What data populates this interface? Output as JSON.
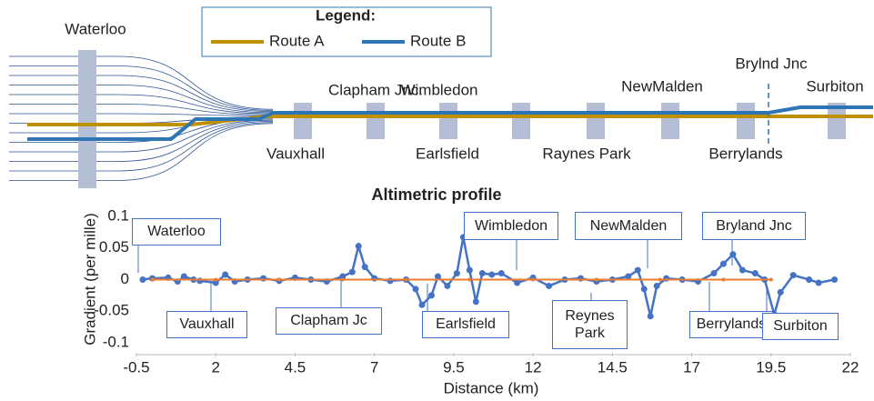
{
  "diagram": {
    "legend_title": "Legend:",
    "routes": [
      {
        "name": "Route A",
        "color": "#bf9000"
      },
      {
        "name": "Route B",
        "color": "#2e75b6"
      }
    ],
    "stations": [
      "Waterloo",
      "Clapham Jnc.",
      "Wimbledon",
      "NewMalden",
      "Brylnd Jnc",
      "Surbiton",
      "Vauxhall",
      "Earlsfield",
      "Raynes Park",
      "Berrylands"
    ]
  },
  "chart_data": {
    "type": "line",
    "title": "Altimetric profile",
    "x_label": "Distance (km)",
    "y_label": "Gradient (per mille)",
    "xlim": [
      -0.5,
      22
    ],
    "xticks": [
      -0.5,
      2,
      4.5,
      7,
      9.5,
      12,
      14.5,
      17,
      19.5,
      22
    ],
    "ylim": [
      -0.1,
      0.1
    ],
    "yticks": [
      -0.1,
      -0.05,
      0,
      0.05,
      0.1
    ],
    "grid": false,
    "series": [
      {
        "color": "#4472c4",
        "x": [
          -0.3,
          0,
          0.5,
          0.8,
          1,
          1.3,
          1.5,
          2,
          2.3,
          2.6,
          3,
          3.5,
          4,
          4.5,
          5,
          5.5,
          6,
          6.3,
          6.5,
          6.7,
          7,
          7.5,
          8,
          8.3,
          8.5,
          8.8,
          9,
          9.3,
          9.6,
          9.8,
          10,
          10.2,
          10.4,
          10.7,
          11,
          11.5,
          12,
          12.5,
          13,
          13.5,
          14,
          14.5,
          15,
          15.3,
          15.5,
          15.7,
          15.9,
          16.2,
          16.7,
          17.2,
          17.7,
          18,
          18.3,
          18.6,
          19,
          19.3,
          19.6,
          19.8,
          20.2,
          20.7,
          21,
          21.5
        ],
        "values": [
          0,
          0.002,
          0.003,
          -0.003,
          0.005,
          0,
          -0.002,
          -0.005,
          0.008,
          -0.003,
          0,
          0.002,
          -0.002,
          0.003,
          0,
          -0.003,
          0.005,
          0.012,
          0.053,
          0.02,
          0.002,
          -0.002,
          0,
          -0.015,
          -0.04,
          -0.025,
          0.005,
          -0.01,
          0.01,
          0.067,
          0.015,
          -0.035,
          0.01,
          0.008,
          0.01,
          -0.005,
          0.003,
          -0.01,
          0,
          0.002,
          -0.003,
          0,
          0.005,
          0.015,
          -0.015,
          -0.058,
          -0.01,
          0.002,
          0,
          -0.003,
          0.01,
          0.025,
          0.04,
          0.015,
          0.01,
          0,
          -0.055,
          -0.02,
          0.007,
          0,
          -0.005,
          0
        ]
      },
      {
        "color": "#ed7d31",
        "x": [
          0,
          2,
          4,
          6,
          8,
          10,
          12,
          14,
          16,
          18,
          19.5
        ],
        "values": [
          0,
          0,
          0,
          0,
          0,
          0,
          0,
          0,
          0,
          0,
          0
        ]
      }
    ],
    "annotations": [
      "Waterloo",
      "Vauxhall",
      "Clapham Jc",
      "Wimbledon",
      "Earlsfield",
      "Reynes Park",
      "NewMalden",
      "Berrylands",
      "Bryland Jnc",
      "Surbiton"
    ]
  }
}
